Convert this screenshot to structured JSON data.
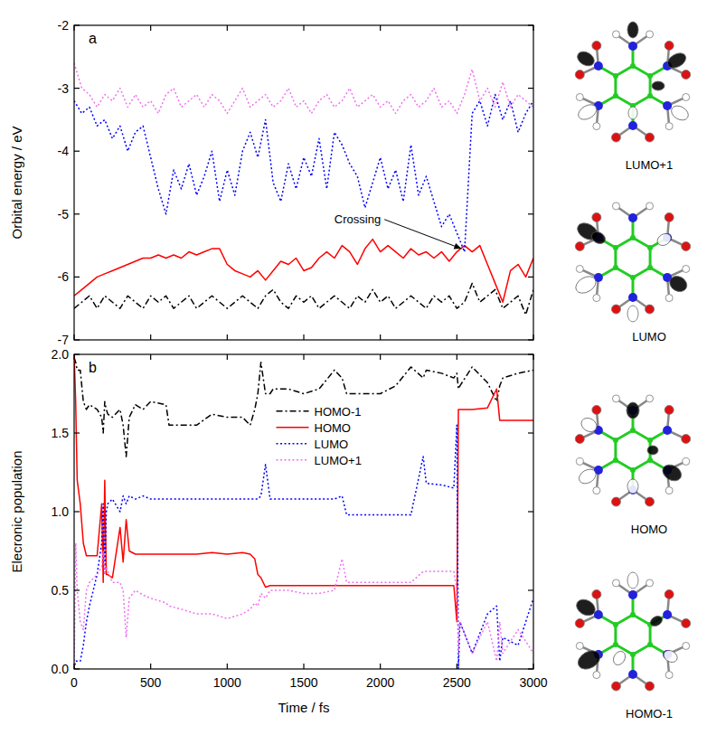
{
  "chart_data": [
    {
      "type": "line",
      "panel_label": "a",
      "y_label": "Orbital energy / eV",
      "xlim": [
        0,
        3000
      ],
      "xticks": [
        0,
        500,
        1000,
        1500,
        2000,
        2500,
        3000
      ],
      "ylim": [
        -7,
        -2
      ],
      "yticks": [
        -7,
        -6,
        -5,
        -4,
        -3,
        -2
      ],
      "tick_labels": "y",
      "x": [
        0,
        50,
        100,
        150,
        200,
        250,
        300,
        350,
        400,
        450,
        500,
        550,
        600,
        650,
        700,
        750,
        800,
        850,
        900,
        950,
        1000,
        1050,
        1100,
        1150,
        1200,
        1250,
        1300,
        1350,
        1400,
        1450,
        1500,
        1550,
        1600,
        1650,
        1700,
        1750,
        1800,
        1850,
        1900,
        1950,
        2000,
        2050,
        2100,
        2150,
        2200,
        2250,
        2300,
        2350,
        2400,
        2450,
        2500,
        2550,
        2600,
        2650,
        2700,
        2750,
        2800,
        2850,
        2900,
        2950,
        3000
      ],
      "series": [
        {
          "name": "HOMO-1",
          "color": "#000000",
          "line_style": "dash-dot",
          "values": [
            -6.5,
            -6.4,
            -6.3,
            -6.5,
            -6.3,
            -6.4,
            -6.5,
            -6.3,
            -6.4,
            -6.5,
            -6.3,
            -6.4,
            -6.3,
            -6.5,
            -6.4,
            -6.3,
            -6.5,
            -6.4,
            -6.3,
            -6.4,
            -6.5,
            -6.4,
            -6.3,
            -6.4,
            -6.5,
            -6.3,
            -6.2,
            -6.4,
            -6.5,
            -6.3,
            -6.4,
            -6.3,
            -6.5,
            -6.4,
            -6.3,
            -6.4,
            -6.5,
            -6.3,
            -6.4,
            -6.2,
            -6.4,
            -6.3,
            -6.5,
            -6.4,
            -6.3,
            -6.4,
            -6.5,
            -6.3,
            -6.4,
            -6.3,
            -6.5,
            -6.4,
            -6.1,
            -6.4,
            -6.3,
            -6.2,
            -6.5,
            -6.4,
            -6.3,
            -6.6,
            -6.2
          ]
        },
        {
          "name": "HOMO",
          "color": "#ff0000",
          "line_style": "solid",
          "values": [
            -6.3,
            -6.2,
            -6.1,
            -6.0,
            -5.95,
            -5.9,
            -5.85,
            -5.8,
            -5.75,
            -5.7,
            -5.7,
            -5.65,
            -5.7,
            -5.65,
            -5.7,
            -5.6,
            -5.65,
            -5.6,
            -5.55,
            -5.55,
            -5.8,
            -5.9,
            -5.95,
            -6.0,
            -5.9,
            -6.05,
            -5.9,
            -5.75,
            -5.8,
            -5.7,
            -5.9,
            -5.85,
            -5.7,
            -5.6,
            -5.7,
            -5.5,
            -5.6,
            -5.8,
            -5.55,
            -5.4,
            -5.6,
            -5.5,
            -5.6,
            -5.7,
            -5.55,
            -5.65,
            -5.6,
            -5.7,
            -5.6,
            -5.75,
            -5.6,
            -5.5,
            -5.6,
            -5.5,
            -5.8,
            -6.1,
            -6.4,
            -5.9,
            -5.8,
            -6.0,
            -5.7
          ]
        },
        {
          "name": "LUMO",
          "color": "#0000ff",
          "line_style": "dotted",
          "values": [
            -3.2,
            -3.4,
            -3.3,
            -3.6,
            -3.5,
            -3.8,
            -3.6,
            -4.0,
            -3.7,
            -3.6,
            -4.1,
            -4.6,
            -5.0,
            -4.3,
            -4.6,
            -4.2,
            -4.7,
            -4.4,
            -4.0,
            -4.8,
            -4.3,
            -4.7,
            -4.0,
            -3.7,
            -4.1,
            -3.5,
            -4.5,
            -4.8,
            -4.2,
            -4.6,
            -4.1,
            -4.4,
            -3.8,
            -4.6,
            -3.7,
            -3.9,
            -4.2,
            -4.4,
            -4.9,
            -4.5,
            -4.1,
            -4.6,
            -4.3,
            -4.8,
            -3.9,
            -4.7,
            -4.4,
            -4.8,
            -5.2,
            -5.0,
            -5.3,
            -5.6,
            -3.4,
            -3.2,
            -3.6,
            -3.1,
            -3.5,
            -3.2,
            -3.7,
            -3.4,
            -3.2
          ]
        },
        {
          "name": "LUMO+1",
          "color": "#f070f0",
          "line_style": "dotted",
          "values": [
            -2.6,
            -3.0,
            -3.1,
            -3.3,
            -3.1,
            -3.2,
            -3.0,
            -3.3,
            -3.1,
            -3.3,
            -3.2,
            -3.4,
            -3.1,
            -3.0,
            -3.3,
            -3.2,
            -3.1,
            -3.3,
            -3.1,
            -3.2,
            -3.4,
            -3.2,
            -3.0,
            -3.3,
            -3.2,
            -3.1,
            -3.3,
            -3.2,
            -3.0,
            -3.3,
            -3.2,
            -3.4,
            -3.2,
            -3.1,
            -3.3,
            -3.2,
            -3.0,
            -3.3,
            -3.2,
            -3.1,
            -3.3,
            -3.2,
            -3.4,
            -3.2,
            -3.1,
            -3.3,
            -3.2,
            -3.0,
            -3.3,
            -3.2,
            -3.4,
            -3.1,
            -2.7,
            -3.2,
            -3.0,
            -3.3,
            -2.9,
            -3.3,
            -3.1,
            -3.2,
            -3.3
          ]
        }
      ],
      "annotations": [
        {
          "text": "Crossing",
          "x": 1700,
          "y": -5.15,
          "arrow_to": [
            2530,
            -5.55
          ]
        }
      ]
    },
    {
      "type": "line",
      "panel_label": "b",
      "x_label": "Time / fs",
      "y_label": "Elecronic population",
      "xlim": [
        0,
        3000
      ],
      "xticks": [
        0,
        500,
        1000,
        1500,
        2000,
        2500,
        3000
      ],
      "ylim": [
        0,
        2
      ],
      "yticks": [
        {
          "value": 0,
          "label": "0.0"
        },
        {
          "value": 0.5,
          "label": "0.5"
        },
        {
          "value": 1,
          "label": "1.0"
        },
        {
          "value": 1.5,
          "label": "1.5"
        },
        {
          "value": 2,
          "label": "2.0"
        }
      ],
      "legend": "top",
      "x": [
        0,
        10,
        20,
        40,
        60,
        80,
        100,
        150,
        180,
        190,
        200,
        210,
        220,
        250,
        300,
        320,
        340,
        360,
        400,
        450,
        500,
        600,
        620,
        700,
        800,
        900,
        1000,
        1100,
        1150,
        1180,
        1200,
        1220,
        1250,
        1280,
        1300,
        1400,
        1500,
        1600,
        1700,
        1750,
        1780,
        1800,
        1900,
        2000,
        2100,
        2200,
        2280,
        2300,
        2400,
        2480,
        2500,
        2510,
        2520,
        2600,
        2700,
        2760,
        2780,
        2800,
        2900,
        3000
      ],
      "series": [
        {
          "name": "HOMO-1",
          "color": "#000000",
          "line_style": "dash-dot",
          "values": [
            1.98,
            1.95,
            1.9,
            1.9,
            1.7,
            1.65,
            1.68,
            1.65,
            1.6,
            1.5,
            1.7,
            1.65,
            1.62,
            1.6,
            1.65,
            1.55,
            1.35,
            1.6,
            1.68,
            1.65,
            1.7,
            1.68,
            1.55,
            1.55,
            1.55,
            1.62,
            1.6,
            1.6,
            1.55,
            1.65,
            1.75,
            1.95,
            1.75,
            1.75,
            1.78,
            1.78,
            1.75,
            1.78,
            1.9,
            1.85,
            1.75,
            1.75,
            1.75,
            1.75,
            1.8,
            1.92,
            1.85,
            1.9,
            1.88,
            1.85,
            1.88,
            1.78,
            1.8,
            1.92,
            1.82,
            1.7,
            1.8,
            1.85,
            1.88,
            1.9
          ]
        },
        {
          "name": "HOMO",
          "color": "#ff0000",
          "line_style": "solid",
          "values": [
            2.0,
            1.7,
            1.2,
            1.05,
            0.8,
            0.72,
            0.72,
            0.72,
            1.05,
            0.55,
            1.2,
            0.6,
            0.6,
            0.58,
            0.9,
            0.68,
            0.95,
            0.75,
            0.73,
            0.73,
            0.73,
            0.73,
            0.73,
            0.73,
            0.73,
            0.74,
            0.73,
            0.74,
            0.73,
            0.7,
            0.6,
            0.58,
            0.52,
            0.53,
            0.53,
            0.53,
            0.53,
            0.53,
            0.53,
            0.53,
            0.53,
            0.53,
            0.53,
            0.53,
            0.53,
            0.53,
            0.53,
            0.53,
            0.53,
            0.53,
            0.3,
            1.65,
            1.65,
            1.65,
            1.66,
            1.78,
            1.58,
            1.58,
            1.58,
            1.58
          ]
        },
        {
          "name": "LUMO",
          "color": "#0000ff",
          "line_style": "dotted",
          "values": [
            0.0,
            0.05,
            0.05,
            0.05,
            0.15,
            0.3,
            0.4,
            0.6,
            0.8,
            1.05,
            0.6,
            1.0,
            1.05,
            1.08,
            1.0,
            1.1,
            1.05,
            1.1,
            1.08,
            1.1,
            1.08,
            1.08,
            1.08,
            1.08,
            1.08,
            1.08,
            1.08,
            1.08,
            1.08,
            1.08,
            1.08,
            1.1,
            1.3,
            1.08,
            1.08,
            1.08,
            1.08,
            1.08,
            1.08,
            1.1,
            0.98,
            0.98,
            0.98,
            0.98,
            0.98,
            0.98,
            1.35,
            1.18,
            1.17,
            1.15,
            1.55,
            0.0,
            0.3,
            0.1,
            0.35,
            0.4,
            0.05,
            0.2,
            0.15,
            0.45
          ]
        },
        {
          "name": "LUMO+1",
          "color": "#f070f0",
          "line_style": "dotted",
          "values": [
            0.0,
            0.8,
            0.5,
            0.3,
            0.25,
            0.5,
            0.55,
            0.6,
            0.65,
            0.75,
            0.6,
            0.65,
            0.62,
            0.55,
            0.55,
            0.5,
            0.2,
            0.45,
            0.5,
            0.47,
            0.45,
            0.42,
            0.4,
            0.38,
            0.35,
            0.35,
            0.32,
            0.35,
            0.38,
            0.42,
            0.4,
            0.48,
            0.45,
            0.5,
            0.5,
            0.5,
            0.48,
            0.48,
            0.5,
            0.7,
            0.55,
            0.55,
            0.55,
            0.55,
            0.55,
            0.55,
            0.62,
            0.62,
            0.62,
            0.62,
            0.5,
            0.1,
            0.3,
            0.1,
            0.3,
            0.05,
            0.3,
            0.1,
            0.25,
            0.1
          ]
        }
      ]
    }
  ],
  "orbitals": {
    "labels": [
      "LUMO+1",
      "LUMO",
      "HOMO",
      "HOMO-1"
    ]
  }
}
